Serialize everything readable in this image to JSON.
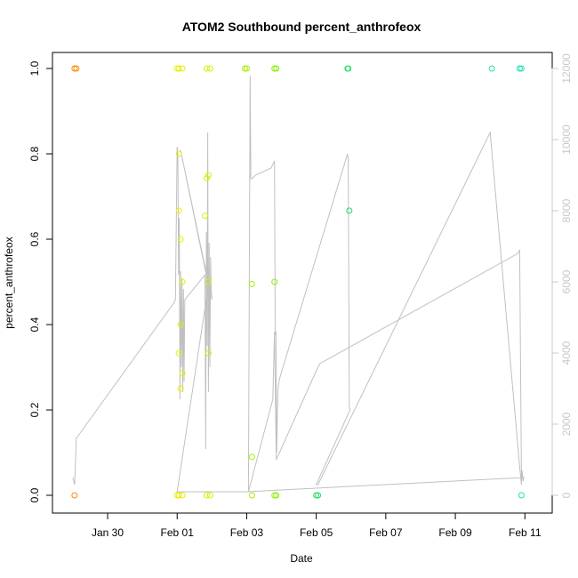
{
  "chart_data": {
    "type": "scatter",
    "title": "ATOM2 Southbound percent_anthrofeox",
    "xlabel": "Date",
    "ylabel": "percent_anthrofeox",
    "x_ticks": [
      {
        "label": "Jan 30",
        "day": 30
      },
      {
        "label": "Feb 01",
        "day": 32
      },
      {
        "label": "Feb 03",
        "day": 34
      },
      {
        "label": "Feb 05",
        "day": 36
      },
      {
        "label": "Feb 07",
        "day": 38
      },
      {
        "label": "Feb 09",
        "day": 40
      },
      {
        "label": "Feb 11",
        "day": 42
      }
    ],
    "xlim": [
      28.9,
      42.3
    ],
    "ylim": [
      0,
      1
    ],
    "y_ticks": [
      "0.0",
      "0.2",
      "0.4",
      "0.6",
      "0.8",
      "1.0"
    ],
    "y2_ticks": [
      "0",
      "2000",
      "4000",
      "6000",
      "8000",
      "10000",
      "12000"
    ],
    "y2lim": [
      0,
      12000
    ],
    "y2_color": "#c8c8c8",
    "grid": false,
    "points": [
      {
        "x": 29.05,
        "y": 1.0,
        "color": "#ff8800"
      },
      {
        "x": 29.1,
        "y": 1.0,
        "color": "#ff8800"
      },
      {
        "x": 29.05,
        "y": 0.0,
        "color": "#ff8800"
      },
      {
        "x": 32.0,
        "y": 1.0,
        "color": "#e6f000"
      },
      {
        "x": 32.05,
        "y": 1.0,
        "color": "#e6f000"
      },
      {
        "x": 32.15,
        "y": 1.0,
        "color": "#e6f000"
      },
      {
        "x": 32.0,
        "y": 0.0,
        "color": "#e6f000"
      },
      {
        "x": 32.05,
        "y": 0.0,
        "color": "#e6f000"
      },
      {
        "x": 32.15,
        "y": 0.0,
        "color": "#e6f000"
      },
      {
        "x": 32.05,
        "y": 0.8,
        "color": "#e6f000"
      },
      {
        "x": 32.05,
        "y": 0.667,
        "color": "#e6f000"
      },
      {
        "x": 32.1,
        "y": 0.6,
        "color": "#e6f000"
      },
      {
        "x": 32.15,
        "y": 0.5,
        "color": "#e6f000"
      },
      {
        "x": 32.1,
        "y": 0.4,
        "color": "#e6f000"
      },
      {
        "x": 32.05,
        "y": 0.333,
        "color": "#e6f000"
      },
      {
        "x": 32.15,
        "y": 0.286,
        "color": "#e6f000"
      },
      {
        "x": 32.1,
        "y": 0.25,
        "color": "#e6f000"
      },
      {
        "x": 32.85,
        "y": 1.0,
        "color": "#d8f000"
      },
      {
        "x": 32.95,
        "y": 1.0,
        "color": "#d8f000"
      },
      {
        "x": 32.85,
        "y": 0.0,
        "color": "#d8f000"
      },
      {
        "x": 32.95,
        "y": 0.0,
        "color": "#d8f000"
      },
      {
        "x": 32.9,
        "y": 0.75,
        "color": "#d8f000"
      },
      {
        "x": 32.85,
        "y": 0.743,
        "color": "#d8f000"
      },
      {
        "x": 32.8,
        "y": 0.655,
        "color": "#d8f000"
      },
      {
        "x": 32.9,
        "y": 0.5,
        "color": "#d8f000"
      },
      {
        "x": 32.9,
        "y": 0.333,
        "color": "#d8f000"
      },
      {
        "x": 33.95,
        "y": 1.0,
        "color": "#a8f000"
      },
      {
        "x": 34.0,
        "y": 1.0,
        "color": "#a8f000"
      },
      {
        "x": 34.15,
        "y": 0.495,
        "color": "#a8f000"
      },
      {
        "x": 34.15,
        "y": 0.09,
        "color": "#a8f000"
      },
      {
        "x": 34.15,
        "y": 0.0,
        "color": "#a8f000"
      },
      {
        "x": 34.8,
        "y": 1.0,
        "color": "#88f000"
      },
      {
        "x": 34.85,
        "y": 1.0,
        "color": "#88f000"
      },
      {
        "x": 34.8,
        "y": 0.5,
        "color": "#88f000"
      },
      {
        "x": 34.8,
        "y": 0.0,
        "color": "#88f000"
      },
      {
        "x": 34.85,
        "y": 0.0,
        "color": "#88f000"
      },
      {
        "x": 36.0,
        "y": 0.0,
        "color": "#22e060"
      },
      {
        "x": 36.05,
        "y": 0.0,
        "color": "#22e060"
      },
      {
        "x": 36.9,
        "y": 1.0,
        "color": "#22e060"
      },
      {
        "x": 36.92,
        "y": 1.0,
        "color": "#22e060"
      },
      {
        "x": 36.95,
        "y": 0.667,
        "color": "#22e060"
      },
      {
        "x": 41.05,
        "y": 1.0,
        "color": "#22e0b0"
      },
      {
        "x": 41.85,
        "y": 1.0,
        "color": "#22e0b0"
      },
      {
        "x": 41.9,
        "y": 1.0,
        "color": "#22e0b0"
      },
      {
        "x": 41.9,
        "y": 0.0,
        "color": "#22e0b0"
      }
    ],
    "line_series": {
      "axis": "right",
      "color": "#c0c0c0",
      "x": [
        29.0,
        29.05,
        29.1,
        31.9,
        31.95,
        32.0,
        32.02,
        32.04,
        32.06,
        32.08,
        32.1,
        32.12,
        32.14,
        32.16,
        32.18,
        32.2,
        32.22,
        32.8,
        32.82,
        32.84,
        32.86,
        32.88,
        32.9,
        32.92,
        32.94,
        32.96,
        32.98,
        33.0,
        32.1,
        32.9,
        32.0,
        33.0,
        33.1,
        34.0,
        34.05,
        34.1,
        34.12,
        34.15,
        34.2,
        34.25,
        34.7,
        34.75,
        34.8,
        34.82,
        34.84,
        34.86,
        34.9,
        34.95,
        36.9,
        36.92,
        36.95,
        36.97,
        36.0,
        36.05,
        41.0,
        41.85,
        41.9,
        41.92,
        41.95,
        41.97,
        34.0,
        34.05,
        34.75,
        34.8,
        34.85,
        36.0,
        36.05,
        36.1,
        41.8,
        41.85,
        41.9
      ],
      "y": [
        500,
        300,
        1600,
        5400,
        5500,
        9800,
        9600,
        6200,
        7800,
        2700,
        6300,
        3600,
        6100,
        2900,
        5800,
        3200,
        5500,
        6200,
        1300,
        7400,
        4200,
        10200,
        2900,
        7100,
        3600,
        6700,
        5800,
        5500,
        9700,
        5900,
        100,
        100,
        100,
        100,
        100,
        11800,
        8900,
        8900,
        8950,
        9000,
        9200,
        9300,
        9400,
        4500,
        4600,
        1200,
        3000,
        3300,
        9600,
        9400,
        2500,
        2400,
        300,
        300,
        10200,
        800,
        300,
        700,
        400,
        500,
        100,
        100,
        2700,
        4600,
        1000,
        3500,
        3600,
        3700,
        6800,
        6900,
        500
      ]
    }
  }
}
